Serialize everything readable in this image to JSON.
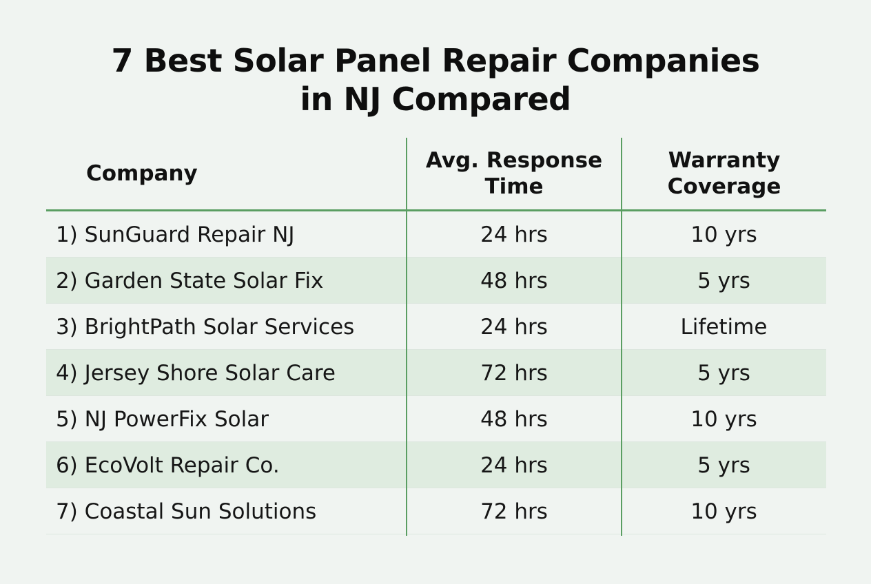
{
  "title": {
    "line1": "7 Best Solar Panel Repair Companies",
    "line2": "in NJ Compared"
  },
  "colors": {
    "background": "#f0f4f1",
    "accent_green": "#5a9e62",
    "row_shade": "#dfece0"
  },
  "chart_data": {
    "type": "table",
    "title": "7 Best Solar Panel Repair Companies in NJ Compared",
    "columns": [
      {
        "lines": [
          "Company"
        ]
      },
      {
        "lines": [
          "Avg. Response",
          "Time"
        ]
      },
      {
        "lines": [
          "Warranty",
          "Coverage"
        ]
      }
    ],
    "rows": [
      {
        "company": "1) SunGuard Repair NJ",
        "response": "24 hrs",
        "warranty": "10 yrs"
      },
      {
        "company": "2) Garden State Solar Fix",
        "response": "48 hrs",
        "warranty": "5 yrs"
      },
      {
        "company": "3) BrightPath Solar Services",
        "response": "24 hrs",
        "warranty": "Lifetime"
      },
      {
        "company": "4) Jersey Shore Solar Care",
        "response": "72 hrs",
        "warranty": "5 yrs"
      },
      {
        "company": "5) NJ PowerFix Solar",
        "response": "48 hrs",
        "warranty": "10 yrs"
      },
      {
        "company": "6) EcoVolt Repair Co.",
        "response": "24 hrs",
        "warranty": "5 yrs"
      },
      {
        "company": "7) Coastal Sun Solutions",
        "response": "72 hrs",
        "warranty": "10 yrs"
      }
    ]
  }
}
